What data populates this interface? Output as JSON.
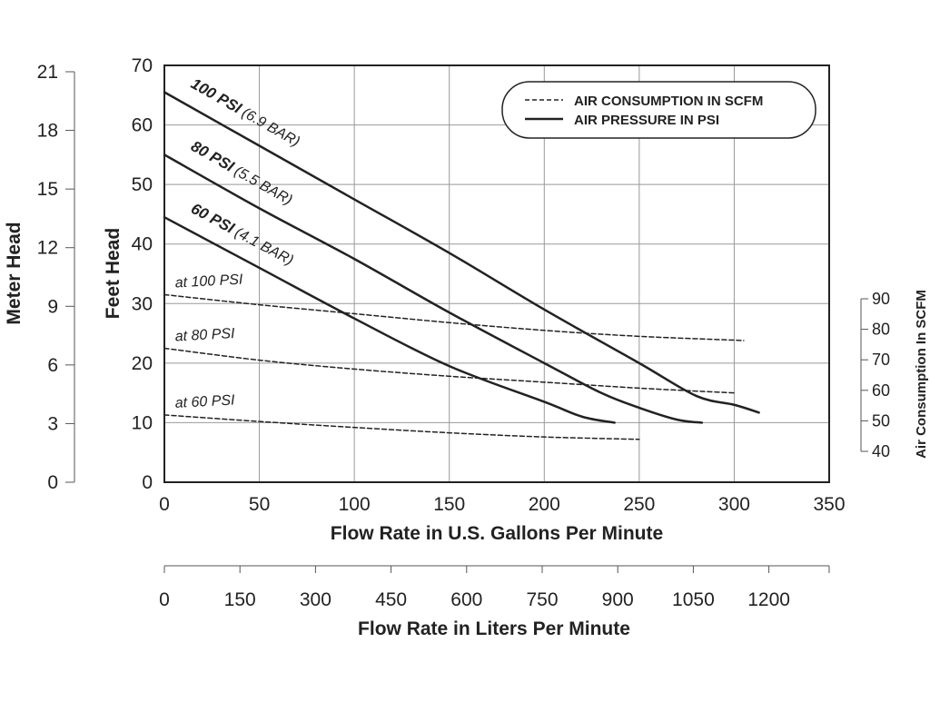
{
  "chart_data": {
    "type": "line",
    "xlabel": "Flow Rate in U.S. Gallons Per Minute",
    "ylabel": "Feet Head",
    "xlim": [
      0,
      350
    ],
    "ylim": [
      0,
      70
    ],
    "x_ticks": [
      "0",
      "50",
      "100",
      "150",
      "200",
      "250",
      "300",
      "350"
    ],
    "y_ticks": [
      "0",
      "10",
      "20",
      "30",
      "40",
      "50",
      "60",
      "70"
    ],
    "meter_head": {
      "label": "Meter Head",
      "ticks": [
        "0",
        "3",
        "6",
        "9",
        "12",
        "15",
        "18",
        "21"
      ]
    },
    "liters": {
      "label": "Flow Rate in Liters Per Minute",
      "ticks": [
        "0",
        "150",
        "300",
        "450",
        "600",
        "750",
        "900",
        "1050",
        "1200"
      ]
    },
    "air_consumption_axis": {
      "label": "Air Consumption In SCFM",
      "ticks": [
        "40",
        "50",
        "60",
        "70",
        "80",
        "90"
      ]
    },
    "legend": {
      "position": "top-right",
      "entries": [
        {
          "label": "AIR CONSUMPTION IN SCFM",
          "style": "dashed"
        },
        {
          "label": "AIR PRESSURE IN PSI",
          "style": "solid"
        }
      ]
    },
    "grid": true,
    "series": [
      {
        "style": "solid",
        "label_bold": "100 PSI",
        "label_italic": "(6.9 BAR)",
        "points": [
          [
            0,
            65.5
          ],
          [
            50,
            56.5
          ],
          [
            100,
            47.5
          ],
          [
            150,
            38.5
          ],
          [
            200,
            29
          ],
          [
            250,
            20
          ],
          [
            280,
            14.5
          ],
          [
            300,
            13
          ],
          [
            313,
            11.7
          ]
        ]
      },
      {
        "style": "solid",
        "label_bold": "80 PSI",
        "label_italic": "(5.5 BAR)",
        "points": [
          [
            0,
            55
          ],
          [
            50,
            46
          ],
          [
            100,
            37.5
          ],
          [
            150,
            28.5
          ],
          [
            200,
            20
          ],
          [
            230,
            15
          ],
          [
            250,
            12.5
          ],
          [
            270,
            10.5
          ],
          [
            283,
            10
          ]
        ]
      },
      {
        "style": "solid",
        "label_bold": "60 PSI",
        "label_italic": "(4.1 BAR)",
        "points": [
          [
            0,
            44.5
          ],
          [
            50,
            36
          ],
          [
            100,
            27.5
          ],
          [
            150,
            19.5
          ],
          [
            200,
            13.5
          ],
          [
            220,
            11
          ],
          [
            237,
            10
          ]
        ]
      },
      {
        "style": "dashed",
        "label": "at 100 PSI",
        "points": [
          [
            0,
            31.5
          ],
          [
            50,
            29.8
          ],
          [
            100,
            28.3
          ],
          [
            150,
            26.8
          ],
          [
            200,
            25.5
          ],
          [
            250,
            24.5
          ],
          [
            305,
            23.8
          ]
        ]
      },
      {
        "style": "dashed",
        "label": "at 80 PSI",
        "points": [
          [
            0,
            22.5
          ],
          [
            50,
            20.5
          ],
          [
            100,
            19
          ],
          [
            150,
            17.8
          ],
          [
            200,
            16.8
          ],
          [
            250,
            15.8
          ],
          [
            300,
            15
          ]
        ]
      },
      {
        "style": "dashed",
        "label": "at 60 PSI",
        "points": [
          [
            0,
            11.3
          ],
          [
            50,
            10.2
          ],
          [
            100,
            9.2
          ],
          [
            150,
            8.3
          ],
          [
            200,
            7.6
          ],
          [
            250,
            7.2
          ]
        ]
      }
    ]
  }
}
